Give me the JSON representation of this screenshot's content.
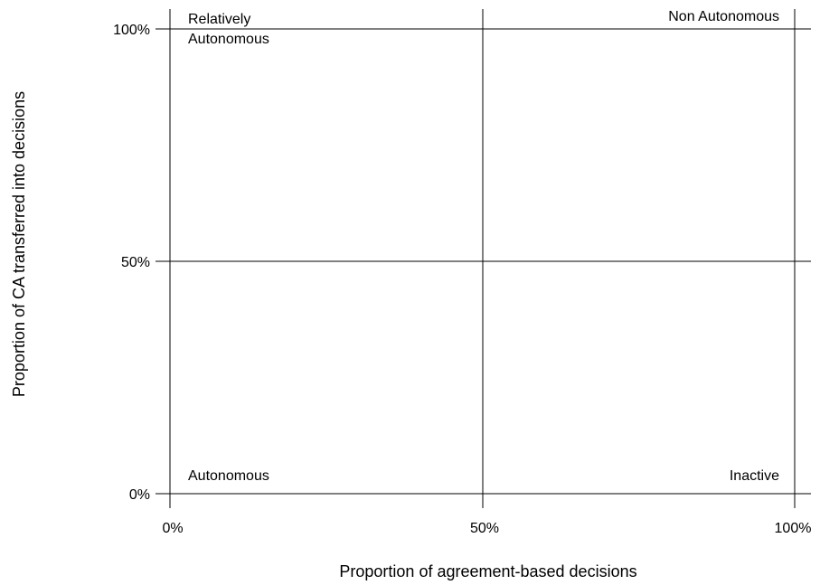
{
  "diagram": {
    "x_axis": {
      "title": "Proportion of agreement-based decisions",
      "ticks": [
        "0%",
        "50%",
        "100%"
      ]
    },
    "y_axis": {
      "title": "Proportion of CA transferred into decisions",
      "ticks": [
        "100%",
        "50%",
        "0%"
      ]
    },
    "quadrant_labels": {
      "top_left_line1": "Relatively",
      "top_left_line2": "Autonomous",
      "top_right": "Non Autonomous",
      "bottom_left": "Autonomous",
      "bottom_right": "Inactive"
    },
    "line_color": "#000000"
  }
}
